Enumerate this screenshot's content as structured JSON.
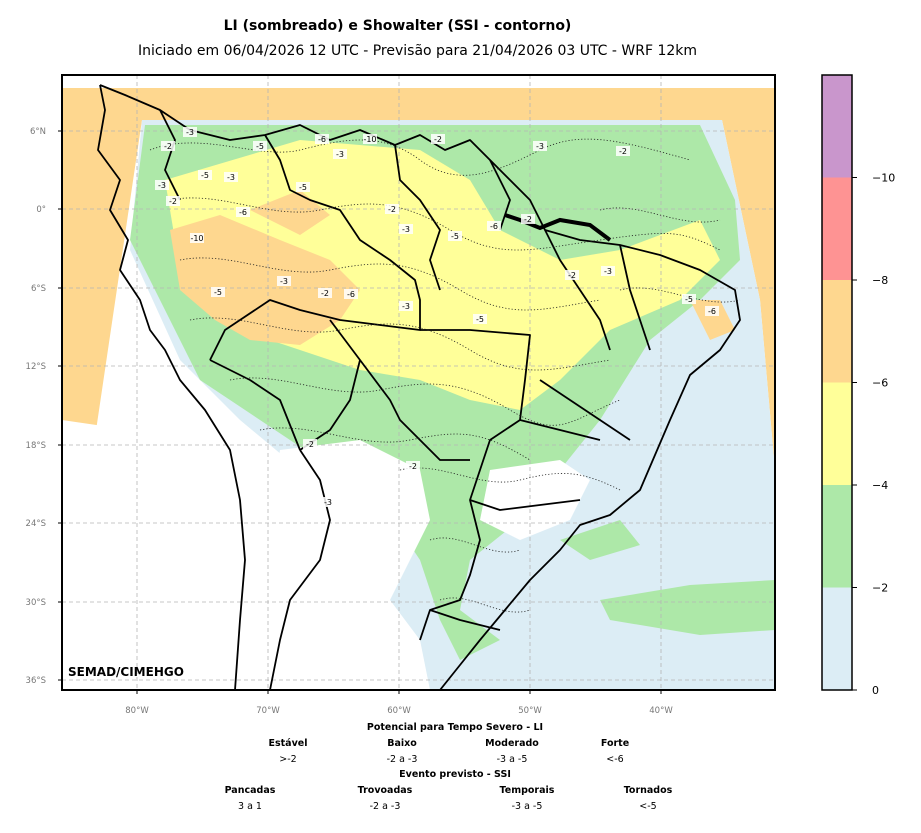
{
  "header": {
    "title": "LI (sombreado) e Showalter (SSI - contorno)",
    "subtitle": "Iniciado em 06/04/2026 12 UTC - Previsão para 21/04/2026 03 UTC - WRF 12km"
  },
  "map": {
    "watermark": "SEMAD/CIMEHGO",
    "lat_ticks": [
      "6°N",
      "0°",
      "6°S",
      "12°S",
      "18°S",
      "24°S",
      "30°S",
      "36°S"
    ],
    "lon_ticks": [
      "80°W",
      "70°W",
      "60°W",
      "50°W",
      "40°W"
    ],
    "ssi_labels": [
      "-2",
      "-3",
      "-5",
      "-6",
      "-10",
      "-2",
      "-3",
      "-5",
      "-3",
      "-2",
      "-6",
      "-5",
      "-3",
      "-2",
      "-3",
      "-5",
      "-6",
      "-2",
      "-3",
      "-2",
      "-10",
      "-5",
      "-3",
      "-2",
      "-6",
      "-3",
      "-5",
      "-2",
      "-3",
      "-5",
      "-6",
      "-2",
      "-3",
      "-2"
    ]
  },
  "colorbar": {
    "levels": [
      "0",
      "−2",
      "−4",
      "−6",
      "−8",
      "−10"
    ],
    "colors": [
      "#dcedf5",
      "#ade8a8",
      "#ffff99",
      "#fed78f",
      "#fe9393",
      "#c996cc"
    ]
  },
  "legend": {
    "li_title": "Potencial para Tempo Severo - LI",
    "li_categories": [
      {
        "name": "Estável",
        "range": ">-2"
      },
      {
        "name": "Baixo",
        "range": "-2 a -3"
      },
      {
        "name": "Moderado",
        "range": "-3 a -5"
      },
      {
        "name": "Forte",
        "range": "<-6"
      }
    ],
    "ssi_title": "Evento previsto - SSI",
    "ssi_categories": [
      {
        "name": "Pancadas",
        "range": "3 a 1"
      },
      {
        "name": "Trovoadas",
        "range": "-2 a -3"
      },
      {
        "name": "Temporais",
        "range": "-3 a -5"
      },
      {
        "name": "Tornados",
        "range": "<-5"
      }
    ]
  }
}
